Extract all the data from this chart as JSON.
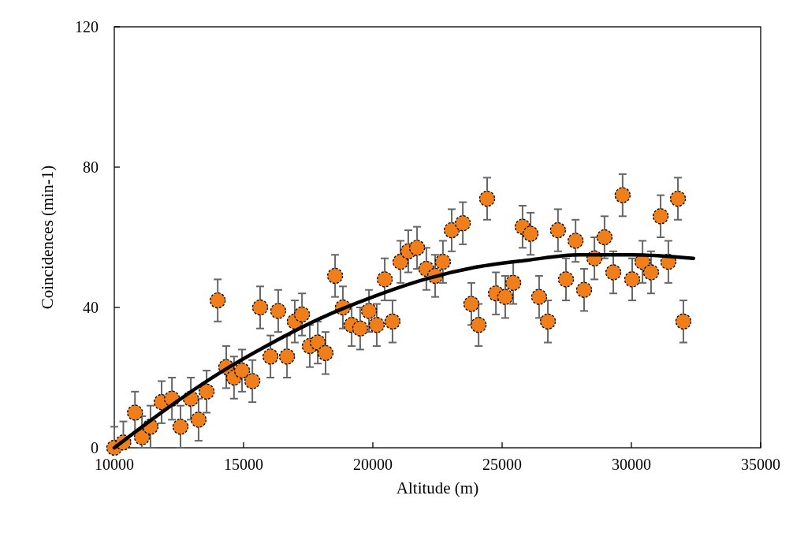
{
  "chart_data": {
    "type": "scatter",
    "xlabel": "Altitude (m)",
    "ylabel": "Coincidences (min-1)",
    "xlim": [
      10000,
      35000
    ],
    "xticks": [
      10000,
      15000,
      20000,
      25000,
      30000,
      35000
    ],
    "ylim": [
      0,
      120
    ],
    "yticks": [
      0,
      40,
      80,
      120
    ],
    "grid": false,
    "series": [
      {
        "type": "scatter",
        "color": "#f07f1b",
        "marker": "circle",
        "x": [
          10000,
          10350,
          10800,
          11070,
          11400,
          11830,
          12230,
          12560,
          12960,
          13260,
          13570,
          14000,
          14330,
          14630,
          14940,
          15340,
          15640,
          16040,
          16340,
          16680,
          16980,
          17260,
          17560,
          17870,
          18170,
          18540,
          18840,
          19180,
          19510,
          19850,
          20150,
          20460,
          20760,
          21070,
          21370,
          21710,
          22070,
          22410,
          22710,
          23050,
          23480,
          23810,
          24090,
          24420,
          24760,
          25120,
          25430,
          25790,
          26100,
          26430,
          26770,
          27160,
          27470,
          27840,
          28170,
          28570,
          28960,
          29300,
          29660,
          30030,
          30430,
          30760,
          31130,
          31430,
          31800,
          32010
        ],
        "values": [
          0,
          1.5,
          10,
          3,
          6,
          13,
          14,
          6,
          14,
          8,
          16,
          42,
          23,
          20,
          22,
          19,
          40,
          26,
          39,
          26,
          36,
          38,
          29,
          30,
          27,
          49,
          40,
          35,
          34,
          39,
          35,
          48,
          36,
          53,
          56,
          57,
          51,
          49,
          53,
          62,
          64,
          41,
          35,
          71,
          44,
          43,
          47,
          63,
          61,
          43,
          36,
          62,
          48,
          59,
          45,
          54,
          60,
          50,
          72,
          48,
          53,
          50,
          66,
          53,
          71,
          36
        ],
        "errors": [
          [
            0,
            6
          ],
          [
            0,
            7.5
          ],
          6,
          [
            0,
            9
          ],
          6,
          6,
          6,
          6,
          6,
          6,
          6,
          6,
          6,
          6,
          6,
          6,
          6,
          6,
          6,
          6,
          6,
          6,
          6,
          6,
          6,
          6,
          6,
          6,
          6,
          6,
          6,
          6,
          6,
          6,
          6,
          6,
          6,
          6,
          6,
          6,
          6,
          6,
          6,
          6,
          6,
          6,
          6,
          6,
          6,
          6,
          6,
          6,
          6,
          6,
          6,
          6,
          6,
          6,
          6,
          6,
          6,
          6,
          6,
          6,
          6,
          6
        ]
      },
      {
        "type": "line",
        "color": "#000000",
        "x": [
          10000,
          12000,
          14000,
          16000,
          18000,
          20000,
          22000,
          24000,
          26000,
          28000,
          30000,
          32400
        ],
        "values": [
          0,
          11,
          21,
          29.5,
          37,
          43,
          48,
          51.5,
          53.5,
          55,
          55,
          54
        ]
      }
    ]
  }
}
